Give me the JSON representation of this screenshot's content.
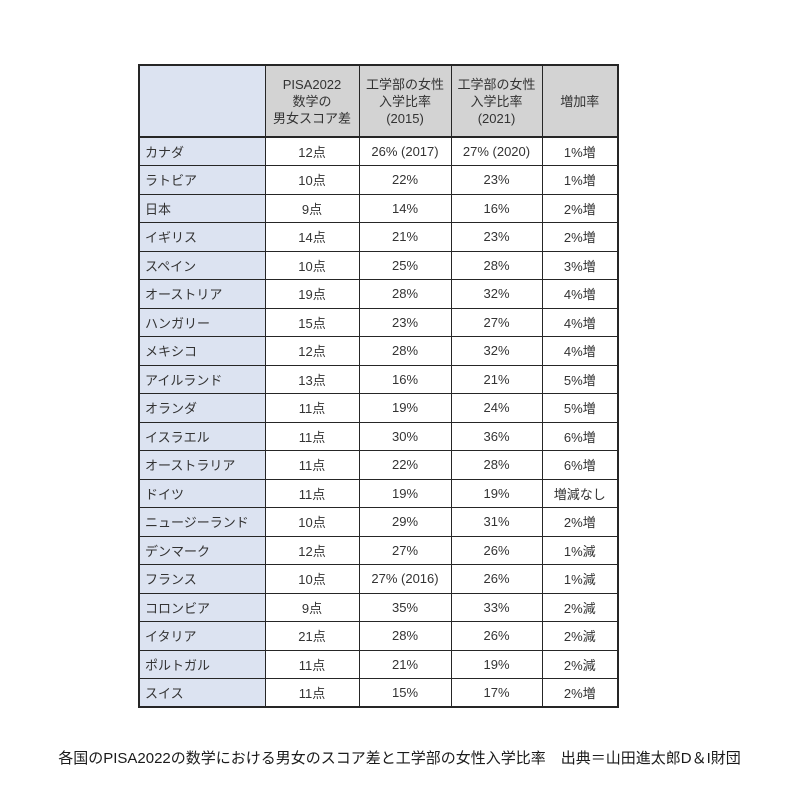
{
  "colors": {
    "country_cell_bg": "#dce3f1",
    "header_cell_bg": "#d3d3d3",
    "data_cell_bg": "#ffffff",
    "grid_border": "#262626",
    "text": "#333333"
  },
  "caption": "各国のPISA2022の数学における男女のスコア差と工学部の女性入学比率　出典＝山田進太郎D＆I財団",
  "chart_data": {
    "type": "table",
    "title": "各国のPISA2022の数学における男女のスコア差と工学部の女性入学比率",
    "source": "出典＝山田進太郎D＆I財団",
    "columns": [
      {
        "lines": [
          ""
        ]
      },
      {
        "lines": [
          "PISA2022",
          "数学の",
          "男女スコア差"
        ]
      },
      {
        "lines": [
          "工学部の女性",
          "入学比率",
          "(2015)"
        ]
      },
      {
        "lines": [
          "工学部の女性",
          "入学比率",
          "(2021)"
        ]
      },
      {
        "lines": [
          "増加率"
        ]
      }
    ],
    "rows": [
      [
        "カナダ",
        "12点",
        "26% (2017)",
        "27% (2020)",
        "1%増"
      ],
      [
        "ラトビア",
        "10点",
        "22%",
        "23%",
        "1%増"
      ],
      [
        "日本",
        "9点",
        "14%",
        "16%",
        "2%増"
      ],
      [
        "イギリス",
        "14点",
        "21%",
        "23%",
        "2%増"
      ],
      [
        "スペイン",
        "10点",
        "25%",
        "28%",
        "3%増"
      ],
      [
        "オーストリア",
        "19点",
        "28%",
        "32%",
        "4%増"
      ],
      [
        "ハンガリー",
        "15点",
        "23%",
        "27%",
        "4%増"
      ],
      [
        "メキシコ",
        "12点",
        "28%",
        "32%",
        "4%増"
      ],
      [
        "アイルランド",
        "13点",
        "16%",
        "21%",
        "5%増"
      ],
      [
        "オランダ",
        "11点",
        "19%",
        "24%",
        "5%増"
      ],
      [
        "イスラエル",
        "11点",
        "30%",
        "36%",
        "6%増"
      ],
      [
        "オーストラリア",
        "11点",
        "22%",
        "28%",
        "6%増"
      ],
      [
        "ドイツ",
        "11点",
        "19%",
        "19%",
        "増減なし"
      ],
      [
        "ニュージーランド",
        "10点",
        "29%",
        "31%",
        "2%増"
      ],
      [
        "デンマーク",
        "12点",
        "27%",
        "26%",
        "1%減"
      ],
      [
        "フランス",
        "10点",
        "27% (2016)",
        "26%",
        "1%減"
      ],
      [
        "コロンビア",
        "9点",
        "35%",
        "33%",
        "2%減"
      ],
      [
        "イタリア",
        "21点",
        "28%",
        "26%",
        "2%減"
      ],
      [
        "ポルトガル",
        "11点",
        "21%",
        "19%",
        "2%減"
      ],
      [
        "スイス",
        "11点",
        "15%",
        "17%",
        "2%増"
      ]
    ]
  }
}
